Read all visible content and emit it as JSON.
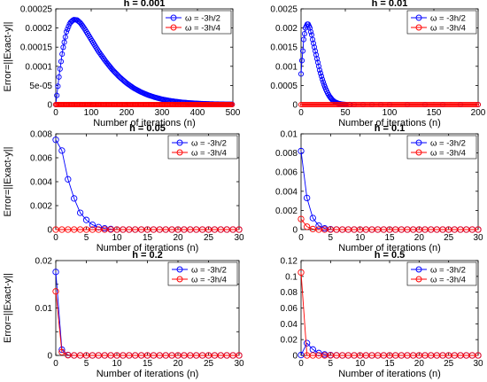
{
  "colors": {
    "blue": "#0000ff",
    "red": "#ff0000",
    "text": "#000000"
  },
  "legend_labels": [
    "ω = -3h/2",
    "ω = -3h/4"
  ],
  "chart_data": [
    {
      "type": "line",
      "title": "h = 0.001",
      "xlabel": "Number of iterations (n)",
      "ylabel": "Error=||Exact-y||",
      "xlim": [
        0,
        500
      ],
      "ylim": [
        0,
        0.00025
      ],
      "xticks": [
        0,
        100,
        200,
        300,
        400,
        500
      ],
      "xtick_labels": [
        "0",
        "100",
        "200",
        "300",
        "400",
        "500"
      ],
      "yticks": [
        0,
        5e-05,
        0.0001,
        0.00015,
        0.0002,
        0.00025
      ],
      "ytick_labels": [
        "0",
        "5e-05",
        "0.0001",
        "0.00015",
        "0.0002",
        "0.00025"
      ],
      "legend_position": "top-right",
      "series": [
        {
          "name": "ω = -3h/2",
          "color": "blue",
          "x": [
            0,
            10,
            20,
            30,
            40,
            50,
            60,
            70,
            80,
            90,
            100,
            120,
            140,
            160,
            180,
            200,
            220,
            240,
            260,
            280,
            300,
            320,
            340,
            360,
            380,
            400,
            420,
            440,
            460,
            480,
            500
          ],
          "y": [
            0,
            8e-05,
            0.000145,
            0.00019,
            0.000213,
            0.000222,
            0.000221,
            0.000213,
            0.0002,
            0.000185,
            0.00017,
            0.00014,
            0.000114,
            9.1e-05,
            7.2e-05,
            5.6e-05,
            4.3e-05,
            3.3e-05,
            2.5e-05,
            1.9e-05,
            1.4e-05,
            1.05e-05,
            7.8e-06,
            5.7e-06,
            4.2e-06,
            3.1e-06,
            2.2e-06,
            1.6e-06,
            1.2e-06,
            8e-07,
            6e-07
          ]
        },
        {
          "name": "ω = -3h/4",
          "color": "red",
          "x": [
            0,
            500
          ],
          "y": [
            0,
            0
          ]
        }
      ]
    },
    {
      "type": "line",
      "title": "h = 0.01",
      "xlabel": "Number of iterations (n)",
      "ylabel": "",
      "xlim": [
        0,
        200
      ],
      "ylim": [
        0,
        0.0025
      ],
      "xticks": [
        0,
        50,
        100,
        150,
        200
      ],
      "xtick_labels": [
        "0",
        "50",
        "100",
        "150",
        "200"
      ],
      "yticks": [
        0,
        0.0005,
        0.001,
        0.0015,
        0.002,
        0.0025
      ],
      "ytick_labels": [
        "0",
        "0.0005",
        "0.001",
        "0.0015",
        "0.002",
        "0.0025"
      ],
      "legend_position": "top-right",
      "series": [
        {
          "name": "ω = -3h/2",
          "color": "blue",
          "x": [
            0,
            1,
            2,
            3,
            4,
            5,
            6,
            7,
            8,
            9,
            10,
            11,
            12,
            13,
            14,
            15,
            16,
            17,
            18,
            19,
            20,
            21,
            22,
            23,
            24,
            25,
            26,
            27,
            28,
            29,
            30,
            31,
            32,
            33,
            34,
            35,
            36,
            37,
            38,
            39,
            40,
            41,
            42,
            43,
            44,
            45,
            46,
            47,
            48,
            49,
            50,
            55,
            60,
            70,
            80,
            90,
            100,
            120,
            140,
            160,
            180,
            200
          ],
          "y": [
            0.0008,
            0.00115,
            0.0014,
            0.0017,
            0.00185,
            0.002,
            0.00205,
            0.0021,
            0.0021,
            0.00205,
            0.002,
            0.0019,
            0.00182,
            0.0017,
            0.0016,
            0.0015,
            0.0014,
            0.0013,
            0.0012,
            0.0011,
            0.001,
            0.0009,
            0.00082,
            0.00074,
            0.00066,
            0.00059,
            0.00052,
            0.00046,
            0.0004,
            0.00035,
            0.0003,
            0.00026,
            0.00022,
            0.00019,
            0.00016,
            0.00013,
            0.00011,
            9e-05,
            7e-05,
            6e-05,
            5e-05,
            4e-05,
            3e-05,
            2.5e-05,
            2e-05,
            1.5e-05,
            1e-05,
            8e-06,
            6e-06,
            4e-06,
            3e-06,
            1e-06,
            0,
            0,
            0,
            0,
            0,
            0,
            0,
            0,
            0,
            0
          ]
        },
        {
          "name": "ω = -3h/4",
          "color": "red",
          "x": [
            0,
            200
          ],
          "y": [
            0,
            0
          ]
        }
      ]
    },
    {
      "type": "line",
      "title": "h = 0.05",
      "xlabel": "Number of iterations (n)",
      "ylabel": "Error=||Exact-y||",
      "xlim": [
        0,
        30
      ],
      "ylim": [
        0,
        0.008
      ],
      "xticks": [
        0,
        5,
        10,
        15,
        20,
        25,
        30
      ],
      "xtick_labels": [
        "0",
        "5",
        "10",
        "15",
        "20",
        "25",
        "30"
      ],
      "yticks": [
        0,
        0.002,
        0.004,
        0.006,
        0.008
      ],
      "ytick_labels": [
        "0",
        "0.002",
        "0.004",
        "0.006",
        "0.008"
      ],
      "legend_position": "top-right",
      "series": [
        {
          "name": "ω = -3h/2",
          "color": "blue",
          "x": [
            0,
            1,
            2,
            3,
            4,
            5,
            6,
            7,
            8,
            9,
            10,
            11,
            12,
            13,
            14,
            15,
            16,
            17,
            18,
            19,
            20,
            21,
            22,
            23,
            24,
            25,
            26,
            27,
            28,
            29,
            30
          ],
          "y": [
            0.0075,
            0.0066,
            0.0042,
            0.0026,
            0.0014,
            0.0008,
            0.0004,
            0.0002,
            0.0001,
            4e-05,
            0,
            0,
            0,
            0,
            0,
            0,
            0,
            0,
            0,
            0,
            0,
            0,
            0,
            0,
            0,
            0,
            0,
            0,
            0,
            0,
            0
          ]
        },
        {
          "name": "ω = -3h/4",
          "color": "red",
          "x": [
            0,
            1,
            2,
            3,
            4,
            5,
            6,
            7,
            8,
            9,
            10,
            11,
            12,
            13,
            14,
            15,
            16,
            17,
            18,
            19,
            20,
            21,
            22,
            23,
            24,
            25,
            26,
            27,
            28,
            29,
            30
          ],
          "y": [
            0,
            0,
            0,
            0,
            0,
            0,
            0,
            0,
            0,
            0,
            0,
            0,
            0,
            0,
            0,
            0,
            0,
            0,
            0,
            0,
            0,
            0,
            0,
            0,
            0,
            0,
            0,
            0,
            0,
            0,
            0
          ]
        }
      ]
    },
    {
      "type": "line",
      "title": "h = 0.1",
      "xlabel": "Number of iterations (n)",
      "ylabel": "",
      "xlim": [
        0,
        30
      ],
      "ylim": [
        0,
        0.01
      ],
      "xticks": [
        0,
        5,
        10,
        15,
        20,
        25,
        30
      ],
      "xtick_labels": [
        "0",
        "5",
        "10",
        "15",
        "20",
        "25",
        "30"
      ],
      "yticks": [
        0,
        0.002,
        0.004,
        0.006,
        0.008,
        0.01
      ],
      "ytick_labels": [
        "0",
        "0.002",
        "0.004",
        "0.006",
        "0.008",
        "0.01"
      ],
      "legend_position": "top-right",
      "series": [
        {
          "name": "ω = -3h/2",
          "color": "blue",
          "x": [
            0,
            1,
            2,
            3,
            4,
            5,
            6,
            7,
            8,
            9,
            10,
            11,
            12,
            13,
            14,
            15,
            16,
            17,
            18,
            19,
            20,
            21,
            22,
            23,
            24,
            25,
            26,
            27,
            28,
            29,
            30
          ],
          "y": [
            0.0082,
            0.0033,
            0.0012,
            0.0004,
            0.00012,
            3e-05,
            0,
            0,
            0,
            0,
            0,
            0,
            0,
            0,
            0,
            0,
            0,
            0,
            0,
            0,
            0,
            0,
            0,
            0,
            0,
            0,
            0,
            0,
            0,
            0,
            0
          ]
        },
        {
          "name": "ω = -3h/4",
          "color": "red",
          "x": [
            0,
            1,
            2,
            3,
            4,
            5,
            6,
            7,
            8,
            9,
            10,
            11,
            12,
            13,
            14,
            15,
            16,
            17,
            18,
            19,
            20,
            21,
            22,
            23,
            24,
            25,
            26,
            27,
            28,
            29,
            30
          ],
          "y": [
            0.0011,
            0.0003,
            5e-05,
            0,
            0,
            0,
            0,
            0,
            0,
            0,
            0,
            0,
            0,
            0,
            0,
            0,
            0,
            0,
            0,
            0,
            0,
            0,
            0,
            0,
            0,
            0,
            0,
            0,
            0,
            0,
            0
          ]
        }
      ]
    },
    {
      "type": "line",
      "title": "h = 0.2",
      "xlabel": "Number of iterations (n)",
      "ylabel": "Error=||Exact-y||",
      "xlim": [
        0,
        30
      ],
      "ylim": [
        0,
        0.02
      ],
      "xticks": [
        0,
        5,
        10,
        15,
        20,
        25,
        30
      ],
      "xtick_labels": [
        "0",
        "5",
        "10",
        "15",
        "20",
        "25",
        "30"
      ],
      "yticks": [
        0,
        0.005,
        0.01,
        0.015,
        0.02
      ],
      "ytick_labels": [
        "0",
        "",
        "0.01",
        "",
        "0.02"
      ],
      "legend_position": "top-right",
      "series": [
        {
          "name": "ω = -3h/2",
          "color": "blue",
          "x": [
            0,
            1,
            2,
            3,
            4,
            5,
            6,
            7,
            8,
            9,
            10,
            11,
            12,
            13,
            14,
            15,
            16,
            17,
            18,
            19,
            20,
            21,
            22,
            23,
            24,
            25,
            26,
            27,
            28,
            29,
            30
          ],
          "y": [
            0.0176,
            0.0012,
            0.0001,
            0,
            0,
            0,
            0,
            0,
            0,
            0,
            0,
            0,
            0,
            0,
            0,
            0,
            0,
            0,
            0,
            0,
            0,
            0,
            0,
            0,
            0,
            0,
            0,
            0,
            0,
            0,
            0
          ]
        },
        {
          "name": "ω = -3h/4",
          "color": "red",
          "x": [
            0,
            1,
            2,
            3,
            4,
            5,
            6,
            7,
            8,
            9,
            10,
            11,
            12,
            13,
            14,
            15,
            16,
            17,
            18,
            19,
            20,
            21,
            22,
            23,
            24,
            25,
            26,
            27,
            28,
            29,
            30
          ],
          "y": [
            0.0135,
            0.0007,
            5e-05,
            0,
            0,
            0,
            0,
            0,
            0,
            0,
            0,
            0,
            0,
            0,
            0,
            0,
            0,
            0,
            0,
            0,
            0,
            0,
            0,
            0,
            0,
            0,
            0,
            0,
            0,
            0,
            0
          ]
        }
      ]
    },
    {
      "type": "line",
      "title": "h = 0.5",
      "xlabel": "Number of iterations (n)",
      "ylabel": "",
      "xlim": [
        0,
        30
      ],
      "ylim": [
        0,
        0.12
      ],
      "xticks": [
        0,
        5,
        10,
        15,
        20,
        25,
        30
      ],
      "xtick_labels": [
        "0",
        "5",
        "10",
        "15",
        "20",
        "25",
        "30"
      ],
      "yticks": [
        0,
        0.02,
        0.04,
        0.06,
        0.08,
        0.1,
        0.12
      ],
      "ytick_labels": [
        "0",
        "0.02",
        "0.04",
        "0.06",
        "0.08",
        "0.1",
        "0.12"
      ],
      "legend_position": "top-right",
      "series": [
        {
          "name": "ω = -3h/2",
          "color": "blue",
          "x": [
            0,
            1,
            2,
            3,
            4,
            5,
            6,
            7,
            8,
            9,
            10,
            11,
            12,
            13,
            14,
            15,
            16,
            17,
            18,
            19,
            20,
            21,
            22,
            23,
            24,
            25,
            26,
            27,
            28,
            29,
            30
          ],
          "y": [
            0.0005,
            0.0155,
            0.0075,
            0.003,
            0.0012,
            0.0004,
            0.0001,
            0,
            0,
            0,
            0,
            0,
            0,
            0,
            0,
            0,
            0,
            0,
            0,
            0,
            0,
            0,
            0,
            0,
            0,
            0,
            0,
            0,
            0,
            0,
            0
          ]
        },
        {
          "name": "ω = -3h/4",
          "color": "red",
          "x": [
            0,
            1,
            2,
            3,
            4,
            5,
            6,
            7,
            8,
            9,
            10,
            11,
            12,
            13,
            14,
            15,
            16,
            17,
            18,
            19,
            20,
            21,
            22,
            23,
            24,
            25,
            26,
            27,
            28,
            29,
            30
          ],
          "y": [
            0.105,
            0.0,
            0,
            0,
            0,
            0,
            0,
            0,
            0,
            0,
            0,
            0,
            0,
            0,
            0,
            0,
            0,
            0,
            0,
            0,
            0,
            0,
            0,
            0,
            0,
            0,
            0,
            0,
            0,
            0,
            0
          ]
        }
      ]
    }
  ]
}
